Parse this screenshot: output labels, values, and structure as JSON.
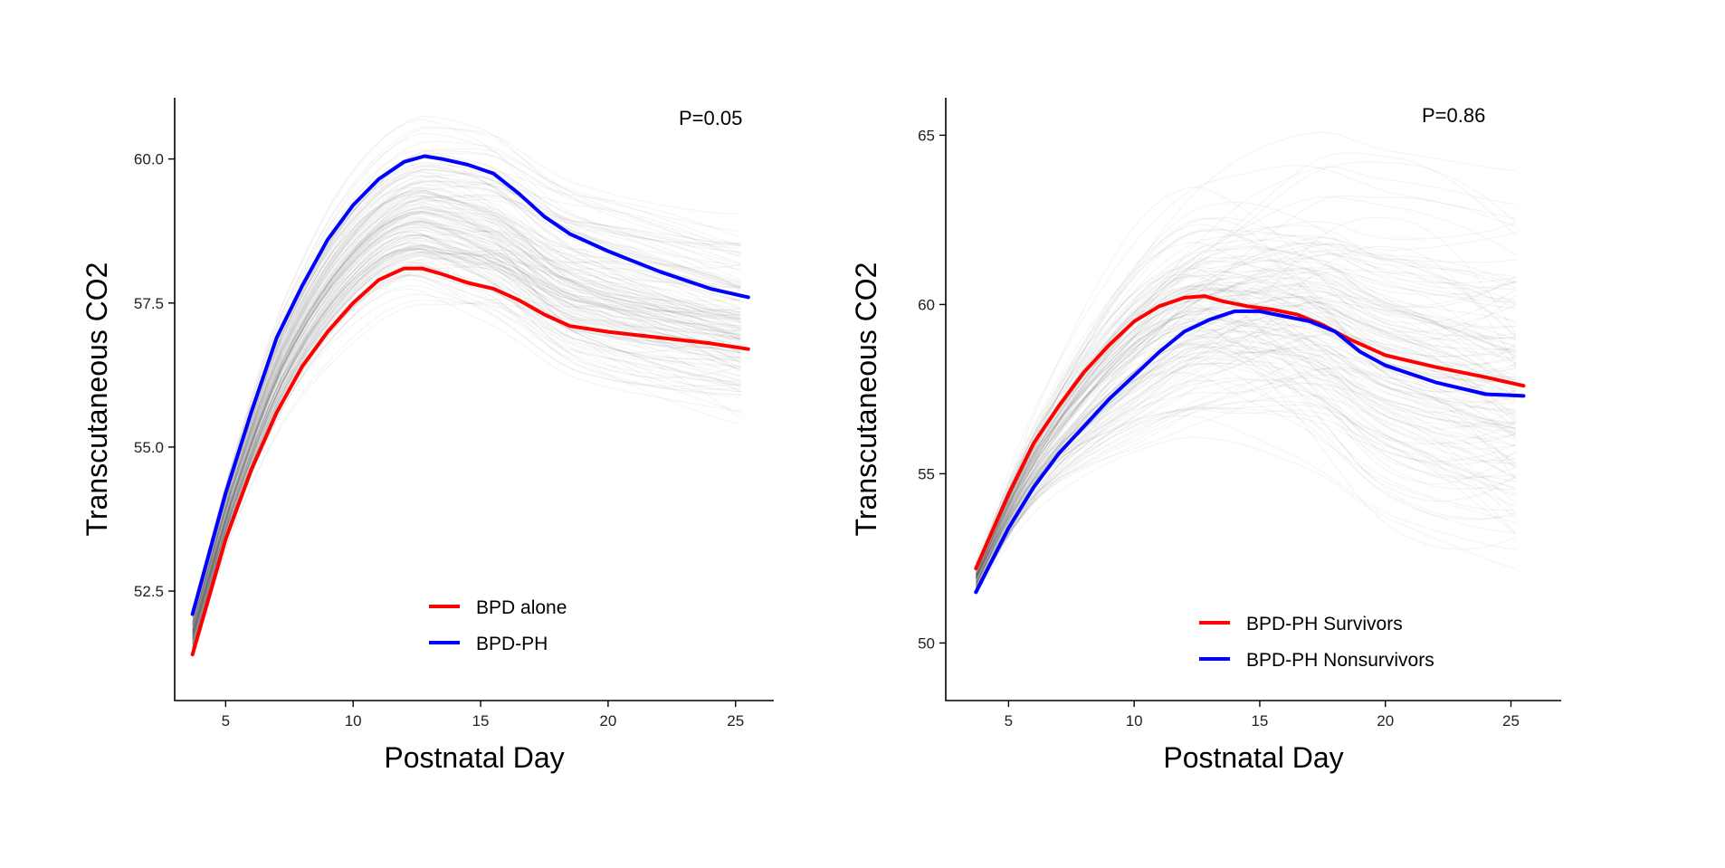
{
  "chart_data": [
    {
      "type": "line",
      "title": "",
      "xlabel": "Postnatal Day",
      "ylabel": "Transcutaneous CO2",
      "annotation": "P=0.05",
      "xlim": [
        3,
        26.5
      ],
      "ylim": [
        50.6,
        61.0
      ],
      "x_ticks": [
        5,
        10,
        15,
        20,
        25
      ],
      "y_ticks": [
        52.5,
        55.0,
        57.5,
        60.0
      ],
      "y_tick_labels": [
        "52.5",
        "55.0",
        "57.5",
        "60.0"
      ],
      "legend_position": "bottom-center",
      "series": [
        {
          "name": "BPD alone",
          "color": "#ff0000",
          "x": [
            3.7,
            5,
            6,
            7,
            8,
            9,
            10,
            11,
            12,
            12.7,
            13.5,
            14.5,
            15.5,
            16.5,
            17.5,
            18.5,
            20,
            22,
            24,
            25.5
          ],
          "y": [
            51.4,
            53.4,
            54.6,
            55.6,
            56.4,
            57.0,
            57.5,
            57.9,
            58.1,
            58.1,
            58.0,
            57.85,
            57.75,
            57.55,
            57.3,
            57.1,
            57.0,
            56.9,
            56.8,
            56.7
          ]
        },
        {
          "name": "BPD-PH",
          "color": "#0000ff",
          "x": [
            3.7,
            5,
            6,
            7,
            8,
            9,
            10,
            11,
            12,
            12.8,
            13.5,
            14.5,
            15.5,
            16.5,
            17.5,
            18.5,
            20,
            22,
            24,
            25.5
          ],
          "y": [
            52.1,
            54.2,
            55.6,
            56.9,
            57.8,
            58.6,
            59.2,
            59.65,
            59.95,
            60.05,
            60.0,
            59.9,
            59.75,
            59.4,
            59.0,
            58.7,
            58.4,
            58.05,
            57.75,
            57.6
          ]
        }
      ]
    },
    {
      "type": "line",
      "title": "",
      "xlabel": "Postnatal Day",
      "ylabel": "Transcutaneous CO2",
      "annotation": "P=0.86",
      "xlim": [
        2.5,
        27
      ],
      "ylim": [
        48.3,
        66.0
      ],
      "x_ticks": [
        5,
        10,
        15,
        20,
        25
      ],
      "y_ticks": [
        50,
        55,
        60,
        65
      ],
      "y_tick_labels": [
        "50",
        "55",
        "60",
        "65"
      ],
      "legend_position": "bottom-center",
      "series": [
        {
          "name": "BPD-PH Survivors",
          "color": "#ff0000",
          "x": [
            3.7,
            5,
            6,
            7,
            8,
            9,
            10,
            11,
            12,
            12.8,
            13.5,
            14.5,
            15.5,
            16.5,
            17.5,
            18.5,
            20,
            22,
            24,
            25.5
          ],
          "y": [
            52.2,
            54.4,
            55.9,
            57.0,
            58.0,
            58.8,
            59.5,
            59.95,
            60.2,
            60.25,
            60.1,
            59.95,
            59.85,
            59.7,
            59.4,
            59.0,
            58.5,
            58.15,
            57.85,
            57.6
          ]
        },
        {
          "name": "BPD-PH Nonsurvivors",
          "color": "#0000ff",
          "x": [
            3.7,
            5,
            6,
            7,
            8,
            9,
            10,
            11,
            12,
            13,
            14,
            15,
            16,
            17,
            18,
            19,
            20,
            22,
            24,
            25.5
          ],
          "y": [
            51.5,
            53.4,
            54.6,
            55.6,
            56.4,
            57.2,
            57.9,
            58.6,
            59.2,
            59.55,
            59.8,
            59.8,
            59.65,
            59.5,
            59.2,
            58.6,
            58.2,
            57.7,
            57.35,
            57.3
          ]
        }
      ]
    }
  ]
}
